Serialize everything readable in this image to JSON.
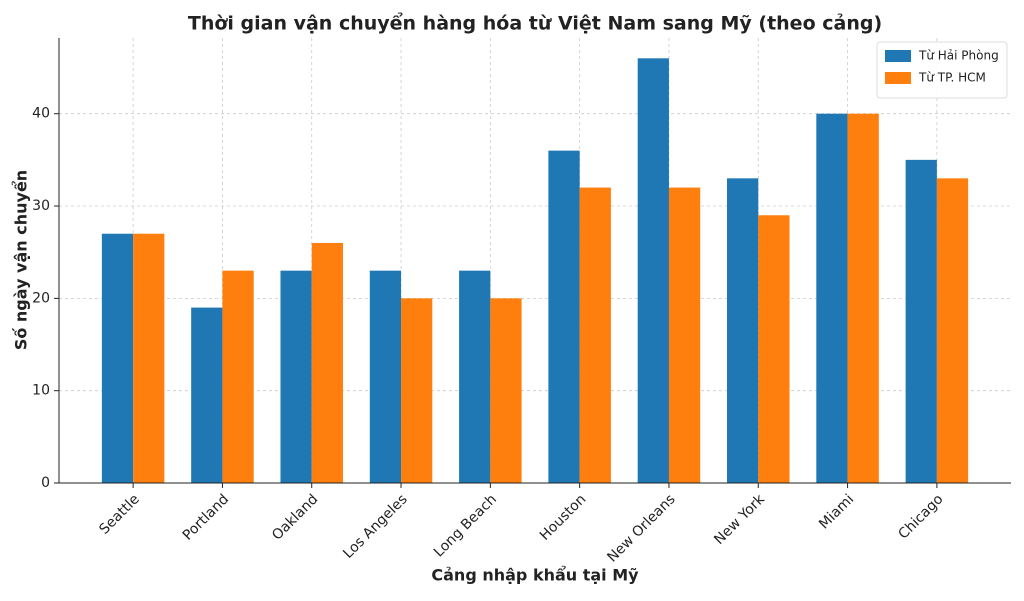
{
  "chart_data": {
    "type": "bar",
    "title": "Thời gian vận chuyển hàng hóa từ Việt Nam sang Mỹ (theo cảng)",
    "x_label": "Cảng nhập khẩu tại Mỹ",
    "y_label": "Số ngày vận chuyển",
    "categories": [
      "Seattle",
      "Portland",
      "Oakland",
      "Los Angeles",
      "Long Beach",
      "Houston",
      "New Orleans",
      "New York",
      "Miami",
      "Chicago"
    ],
    "series": [
      {
        "name": "Từ Hải Phòng",
        "color": "#1f77b4",
        "values": [
          27,
          19,
          23,
          23,
          23,
          36,
          46,
          33,
          40,
          35
        ]
      },
      {
        "name": "Từ TP. HCM",
        "color": "#ff7f0e",
        "values": [
          27,
          23,
          26,
          20,
          20,
          32,
          32,
          29,
          40,
          33
        ]
      }
    ],
    "ylim": [
      0,
      48.2
    ],
    "yticks": [
      0,
      10,
      20,
      30,
      40
    ],
    "grid": true,
    "legend": "upper right"
  }
}
